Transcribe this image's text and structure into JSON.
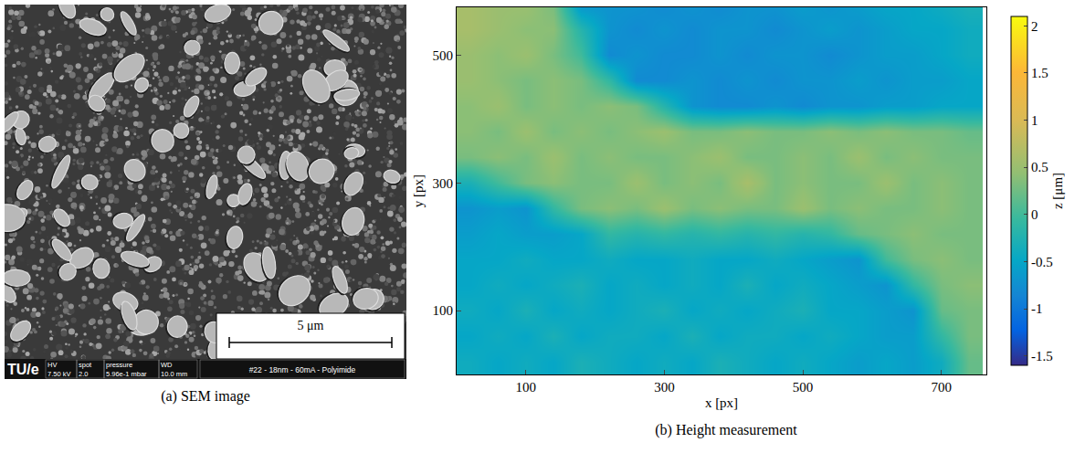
{
  "sem_image": {
    "logo": "TU/e",
    "fields": [
      {
        "name": "HV",
        "value": "7.50 kV"
      },
      {
        "name": "spot",
        "value": "2.0"
      },
      {
        "name": "pressure",
        "value": "5.96e-1 mbar"
      },
      {
        "name": "WD",
        "value": "10.0 mm"
      }
    ],
    "sample": "#22 - 18nm - 60mA - Polyimide",
    "scale_bar": "5 μm",
    "caption": "(a) SEM image"
  },
  "chart_data": {
    "type": "heatmap",
    "caption": "(b) Height measurement",
    "x_label": "x [px]",
    "y_label": "y [px]",
    "x": [
      20,
      60,
      100,
      140,
      180,
      220,
      260,
      300,
      340,
      380,
      420,
      460,
      500,
      540,
      580,
      620,
      660,
      700,
      740
    ],
    "y": [
      20,
      60,
      100,
      140,
      180,
      220,
      260,
      300,
      340,
      380,
      420,
      460,
      500,
      540,
      580
    ],
    "z": [
      [
        -0.4,
        -0.5,
        -0.4,
        -0.5,
        -0.3,
        -0.4,
        -0.5,
        -0.4,
        -0.5,
        -0.3,
        -0.4,
        -0.5,
        -0.4,
        -0.5,
        -0.6,
        -0.5,
        -0.6,
        -0.4,
        0.2
      ],
      [
        -0.5,
        -0.4,
        -0.5,
        -0.3,
        -0.5,
        -0.4,
        -0.4,
        -0.5,
        -0.3,
        -0.5,
        -0.4,
        -0.4,
        -0.5,
        -0.4,
        -0.5,
        -0.6,
        -0.6,
        -0.1,
        0.3
      ],
      [
        -0.4,
        -0.5,
        -0.3,
        -0.5,
        -0.4,
        -0.5,
        -0.4,
        -0.3,
        -0.5,
        -0.4,
        -0.5,
        -0.4,
        -0.3,
        -0.5,
        -0.5,
        -0.6,
        -0.7,
        0.2,
        0.3
      ],
      [
        -0.5,
        -0.4,
        -0.5,
        -0.4,
        -0.3,
        -0.5,
        -0.4,
        -0.5,
        -0.4,
        -0.5,
        -0.3,
        -0.5,
        -0.4,
        -0.5,
        -0.6,
        -0.7,
        -0.1,
        0.3,
        0.4
      ],
      [
        -0.5,
        -0.5,
        -0.4,
        -0.5,
        -0.5,
        -0.4,
        -0.5,
        -0.5,
        -0.4,
        -0.5,
        -0.5,
        -0.4,
        -0.5,
        -0.6,
        -0.7,
        0.0,
        0.3,
        0.4,
        0.3
      ],
      [
        -0.6,
        -0.5,
        -0.6,
        -0.6,
        -0.5,
        -0.1,
        -0.2,
        -0.1,
        -0.2,
        -0.1,
        -0.2,
        -0.1,
        -0.2,
        -0.1,
        0.2,
        0.3,
        0.4,
        0.3,
        0.3
      ],
      [
        -0.7,
        -0.6,
        -0.7,
        -0.1,
        0.3,
        0.4,
        0.3,
        0.5,
        0.3,
        0.4,
        0.3,
        0.3,
        0.5,
        0.3,
        0.4,
        0.3,
        0.3,
        0.4,
        0.3
      ],
      [
        -0.3,
        0.0,
        0.3,
        0.4,
        0.3,
        0.3,
        0.5,
        0.3,
        0.4,
        0.3,
        0.6,
        0.3,
        0.4,
        0.3,
        0.3,
        0.5,
        0.3,
        0.4,
        0.3
      ],
      [
        0.3,
        0.4,
        0.3,
        0.5,
        0.3,
        0.4,
        0.3,
        0.3,
        0.4,
        0.5,
        0.3,
        0.3,
        0.4,
        0.3,
        0.5,
        0.3,
        0.4,
        0.3,
        0.3
      ],
      [
        0.4,
        0.3,
        0.5,
        0.3,
        0.4,
        0.3,
        0.4,
        0.5,
        0.3,
        0.3,
        0.4,
        0.3,
        0.3,
        0.4,
        0.3,
        0.4,
        0.3,
        0.3,
        0.2
      ],
      [
        0.4,
        0.5,
        0.3,
        0.4,
        0.3,
        0.4,
        0.3,
        -0.2,
        -0.7,
        -0.8,
        -0.8,
        -0.7,
        -0.8,
        -0.7,
        -0.7,
        -0.6,
        -0.6,
        -0.5,
        -0.5
      ],
      [
        0.5,
        0.4,
        0.3,
        0.4,
        0.3,
        -0.1,
        -0.8,
        -0.8,
        -0.7,
        -0.8,
        -0.7,
        -0.8,
        -0.7,
        -0.7,
        -0.6,
        -0.7,
        -0.6,
        -0.6,
        -0.5
      ],
      [
        0.5,
        0.4,
        0.5,
        0.3,
        0.0,
        -0.8,
        -0.7,
        -0.8,
        -0.8,
        -0.7,
        -0.8,
        -0.7,
        -0.7,
        -0.8,
        -0.7,
        -0.6,
        -0.6,
        -0.5,
        -0.4
      ],
      [
        0.6,
        0.5,
        0.4,
        0.4,
        -0.2,
        -0.7,
        -0.8,
        -0.7,
        -0.8,
        -0.7,
        -0.7,
        -0.8,
        -0.7,
        -0.6,
        -0.7,
        -0.6,
        -0.5,
        -0.5,
        -0.4
      ],
      [
        0.6,
        0.5,
        0.5,
        0.3,
        -0.7,
        -0.7,
        -0.7,
        -0.8,
        -0.7,
        -0.8,
        -0.7,
        -0.7,
        -0.6,
        -0.7,
        -0.6,
        -0.5,
        -0.5,
        -0.4,
        -0.3
      ]
    ],
    "xlim": [
      0,
      765
    ],
    "ylim": [
      0,
      575
    ],
    "xticks": [
      100,
      300,
      500,
      700
    ],
    "yticks": [
      100,
      300,
      500
    ],
    "colorbar": {
      "title": "z [μm]",
      "range": [
        -1.6,
        2.1
      ],
      "ticks": [
        -1.5,
        -1,
        -0.5,
        0,
        0.5,
        1,
        1.5,
        2
      ]
    },
    "grid": false
  }
}
